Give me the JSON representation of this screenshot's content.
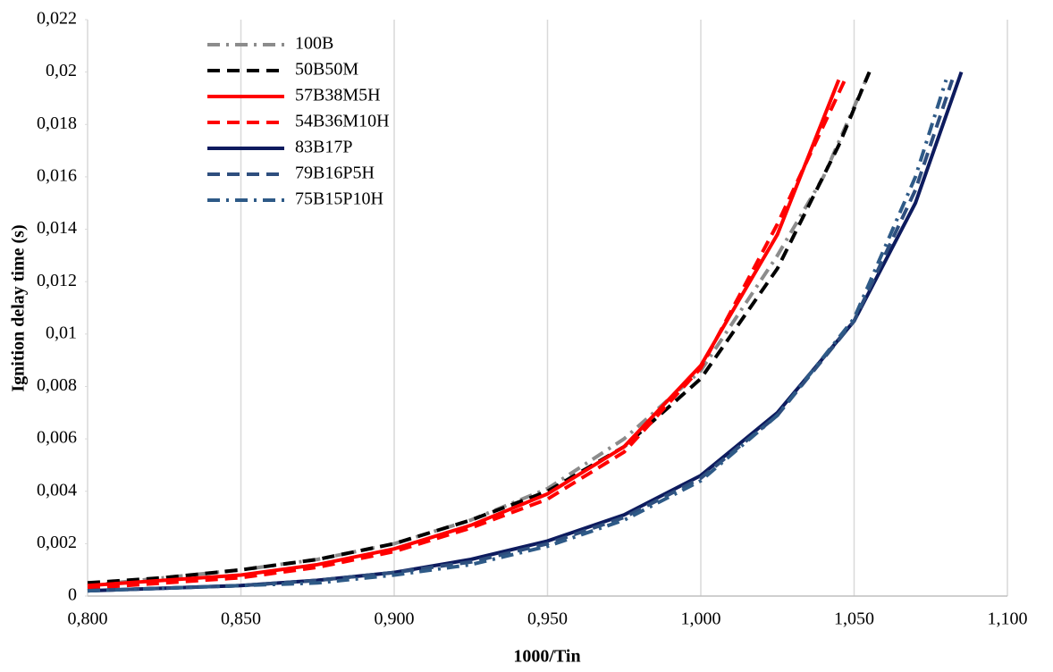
{
  "chart_data": {
    "type": "line",
    "x_label": "1000/Tin",
    "y_label": "Ignition delay time (s)",
    "xlim": [
      0.8,
      1.1
    ],
    "ylim": [
      0,
      0.022
    ],
    "xticks": [
      {
        "value": 0.8,
        "label": "0,800"
      },
      {
        "value": 0.85,
        "label": "0,850"
      },
      {
        "value": 0.9,
        "label": "0,900"
      },
      {
        "value": 0.95,
        "label": "0,950"
      },
      {
        "value": 1.0,
        "label": "1,000"
      },
      {
        "value": 1.05,
        "label": "1,050"
      },
      {
        "value": 1.1,
        "label": "1,100"
      }
    ],
    "yticks": [
      0,
      {
        "value": 0.002,
        "label": "0,002"
      },
      {
        "value": 0.004,
        "label": "0,004"
      },
      {
        "value": 0.006,
        "label": "0,006"
      },
      {
        "value": 0.008,
        "label": "0,008"
      },
      {
        "value": 0.01,
        "label": "0,01"
      },
      {
        "value": 0.012,
        "label": "0,012"
      },
      {
        "value": 0.014,
        "label": "0,014"
      },
      {
        "value": 0.016,
        "label": "0,016"
      },
      {
        "value": 0.018,
        "label": "0,018"
      },
      {
        "value": 0.02,
        "label": "0,02"
      },
      {
        "value": 0.022,
        "label": "0,022"
      }
    ],
    "grid": "x",
    "legend": "upper left",
    "series": [
      {
        "name": "100B",
        "color": "#8c8c8c",
        "dash": "dash-dot",
        "x": [
          0.8,
          0.825,
          0.85,
          0.875,
          0.9,
          0.925,
          0.95,
          0.975,
          1.0,
          1.025,
          1.04,
          1.055
        ],
        "values": [
          0.0004,
          0.0007,
          0.001,
          0.0014,
          0.002,
          0.0029,
          0.0041,
          0.006,
          0.0086,
          0.013,
          0.016,
          0.02
        ]
      },
      {
        "name": "50B50M",
        "color": "#000000",
        "dash": "dash",
        "x": [
          0.8,
          0.825,
          0.85,
          0.875,
          0.9,
          0.925,
          0.95,
          0.975,
          1.0,
          1.025,
          1.045,
          1.055
        ],
        "values": [
          0.0005,
          0.0007,
          0.001,
          0.0014,
          0.002,
          0.0029,
          0.004,
          0.0057,
          0.0083,
          0.0125,
          0.0172,
          0.02
        ]
      },
      {
        "name": "57B38M5H",
        "color": "#ff0000",
        "dash": "solid",
        "x": [
          0.8,
          0.825,
          0.85,
          0.875,
          0.9,
          0.925,
          0.95,
          0.975,
          1.0,
          1.025,
          1.045
        ],
        "values": [
          0.0004,
          0.0006,
          0.0008,
          0.0012,
          0.0018,
          0.0027,
          0.0039,
          0.0057,
          0.0088,
          0.0138,
          0.0197
        ]
      },
      {
        "name": "54B36M10H",
        "color": "#ff0000",
        "dash": "dash",
        "x": [
          0.8,
          0.825,
          0.85,
          0.875,
          0.9,
          0.925,
          0.95,
          0.975,
          1.0,
          1.025,
          1.047
        ],
        "values": [
          0.0003,
          0.0005,
          0.0007,
          0.0011,
          0.0017,
          0.0026,
          0.0037,
          0.0055,
          0.0087,
          0.0142,
          0.0197
        ]
      },
      {
        "name": "83B17P",
        "color": "#0d1b5e",
        "dash": "solid",
        "x": [
          0.8,
          0.825,
          0.85,
          0.875,
          0.9,
          0.925,
          0.95,
          0.975,
          1.0,
          1.025,
          1.05,
          1.07,
          1.085
        ],
        "values": [
          0.0002,
          0.0003,
          0.0004,
          0.0006,
          0.0009,
          0.0014,
          0.0021,
          0.0031,
          0.0046,
          0.007,
          0.0105,
          0.015,
          0.02
        ]
      },
      {
        "name": "79B16P5H",
        "color": "#2e4e7e",
        "dash": "dash",
        "x": [
          0.8,
          0.825,
          0.85,
          0.875,
          0.9,
          0.925,
          0.95,
          0.975,
          1.0,
          1.025,
          1.05,
          1.07,
          1.082
        ],
        "values": [
          0.0002,
          0.0003,
          0.0004,
          0.0006,
          0.0009,
          0.0013,
          0.002,
          0.003,
          0.0045,
          0.0069,
          0.0105,
          0.0155,
          0.0197
        ]
      },
      {
        "name": "75B15P10H",
        "color": "#2e5a87",
        "dash": "dash-dot",
        "x": [
          0.8,
          0.825,
          0.85,
          0.875,
          0.9,
          0.925,
          0.95,
          0.975,
          1.0,
          1.025,
          1.05,
          1.07,
          1.08
        ],
        "values": [
          0.0002,
          0.0003,
          0.0004,
          0.0005,
          0.0008,
          0.0012,
          0.0019,
          0.0029,
          0.0044,
          0.0069,
          0.0106,
          0.016,
          0.0197
        ]
      }
    ]
  }
}
